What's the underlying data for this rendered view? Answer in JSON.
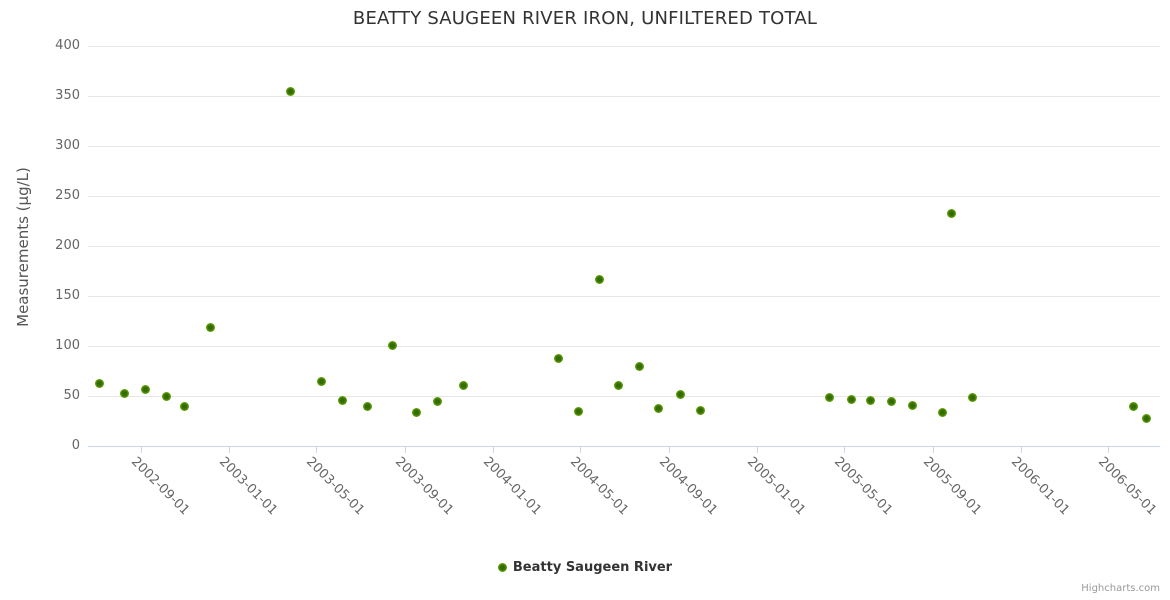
{
  "chart_data": {
    "type": "scatter",
    "title": "BEATTY SAUGEEN RIVER IRON, UNFILTERED TOTAL",
    "xlabel": "",
    "ylabel": "Measurements (µg/L)",
    "ylim": [
      0,
      400
    ],
    "y_ticks": [
      400,
      350,
      300,
      250,
      200,
      150,
      100,
      50,
      0
    ],
    "x_ticks": [
      "2002-09-01",
      "2003-01-01",
      "2003-05-01",
      "2003-09-01",
      "2004-01-01",
      "2004-05-01",
      "2004-09-01",
      "2005-01-01",
      "2005-05-01",
      "2005-09-01",
      "2006-01-01",
      "2006-05-01"
    ],
    "x_range": [
      "2002-06-20",
      "2006-07-12"
    ],
    "grid": true,
    "legend_position": "bottom-center",
    "colors": {
      "marker": "#61a308",
      "marker_center": "#336b00",
      "grid": "#e6e6e6",
      "axis_line": "#ccd6eb",
      "label": "#666666",
      "title": "#333333"
    },
    "series": [
      {
        "name": "Beatty Saugeen River",
        "points": [
          [
            "2002-07-06",
            63
          ],
          [
            "2002-08-10",
            53
          ],
          [
            "2002-09-07",
            57
          ],
          [
            "2002-10-06",
            50
          ],
          [
            "2002-11-01",
            40
          ],
          [
            "2002-12-06",
            119
          ],
          [
            "2003-03-27",
            355
          ],
          [
            "2003-05-09",
            65
          ],
          [
            "2003-06-07",
            46
          ],
          [
            "2003-07-11",
            40
          ],
          [
            "2003-08-15",
            101
          ],
          [
            "2003-09-18",
            34
          ],
          [
            "2003-10-16",
            45
          ],
          [
            "2003-11-21",
            61
          ],
          [
            "2004-04-01",
            88
          ],
          [
            "2004-04-29",
            35
          ],
          [
            "2004-05-27",
            167
          ],
          [
            "2004-06-23",
            61
          ],
          [
            "2004-07-22",
            80
          ],
          [
            "2004-08-17",
            38
          ],
          [
            "2004-09-17",
            52
          ],
          [
            "2004-10-14",
            36
          ],
          [
            "2005-04-11",
            49
          ],
          [
            "2005-05-11",
            47
          ],
          [
            "2005-06-07",
            46
          ],
          [
            "2005-07-06",
            45
          ],
          [
            "2005-08-04",
            41
          ],
          [
            "2005-09-14",
            34
          ],
          [
            "2005-09-27",
            233
          ],
          [
            "2005-10-25",
            49
          ],
          [
            "2006-06-06",
            40
          ],
          [
            "2006-06-24",
            28
          ]
        ]
      }
    ],
    "credits": "Highcharts.com"
  }
}
